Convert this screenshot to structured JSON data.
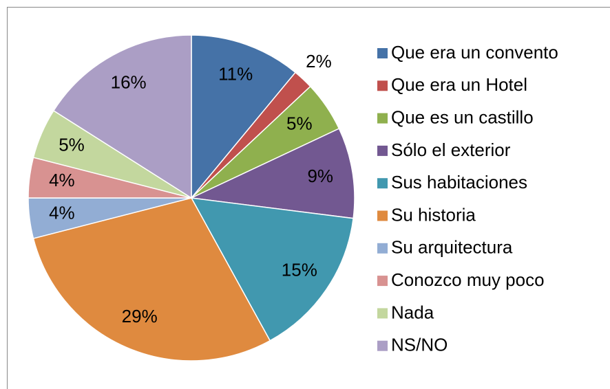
{
  "chart_data": {
    "type": "pie",
    "categories": [
      "Que era un convento",
      "Que era un Hotel",
      "Que es un castillo",
      "Sólo el exterior",
      "Sus habitaciones",
      "Su historia",
      "Su arquitectura",
      "Conozco muy poco",
      "Nada",
      "NS/NO"
    ],
    "values": [
      11,
      2,
      5,
      9,
      15,
      29,
      4,
      4,
      5,
      16
    ],
    "value_labels": [
      "11%",
      "2%",
      "5%",
      "9%",
      "15%",
      "29%",
      "4%",
      "4%",
      "5%",
      "16%"
    ],
    "colors": [
      "#4572a7",
      "#c0504d",
      "#8fb04e",
      "#725891",
      "#4198af",
      "#df8a3f",
      "#92add4",
      "#d89291",
      "#c3d79e",
      "#ab9ec5"
    ],
    "legend": "right"
  }
}
